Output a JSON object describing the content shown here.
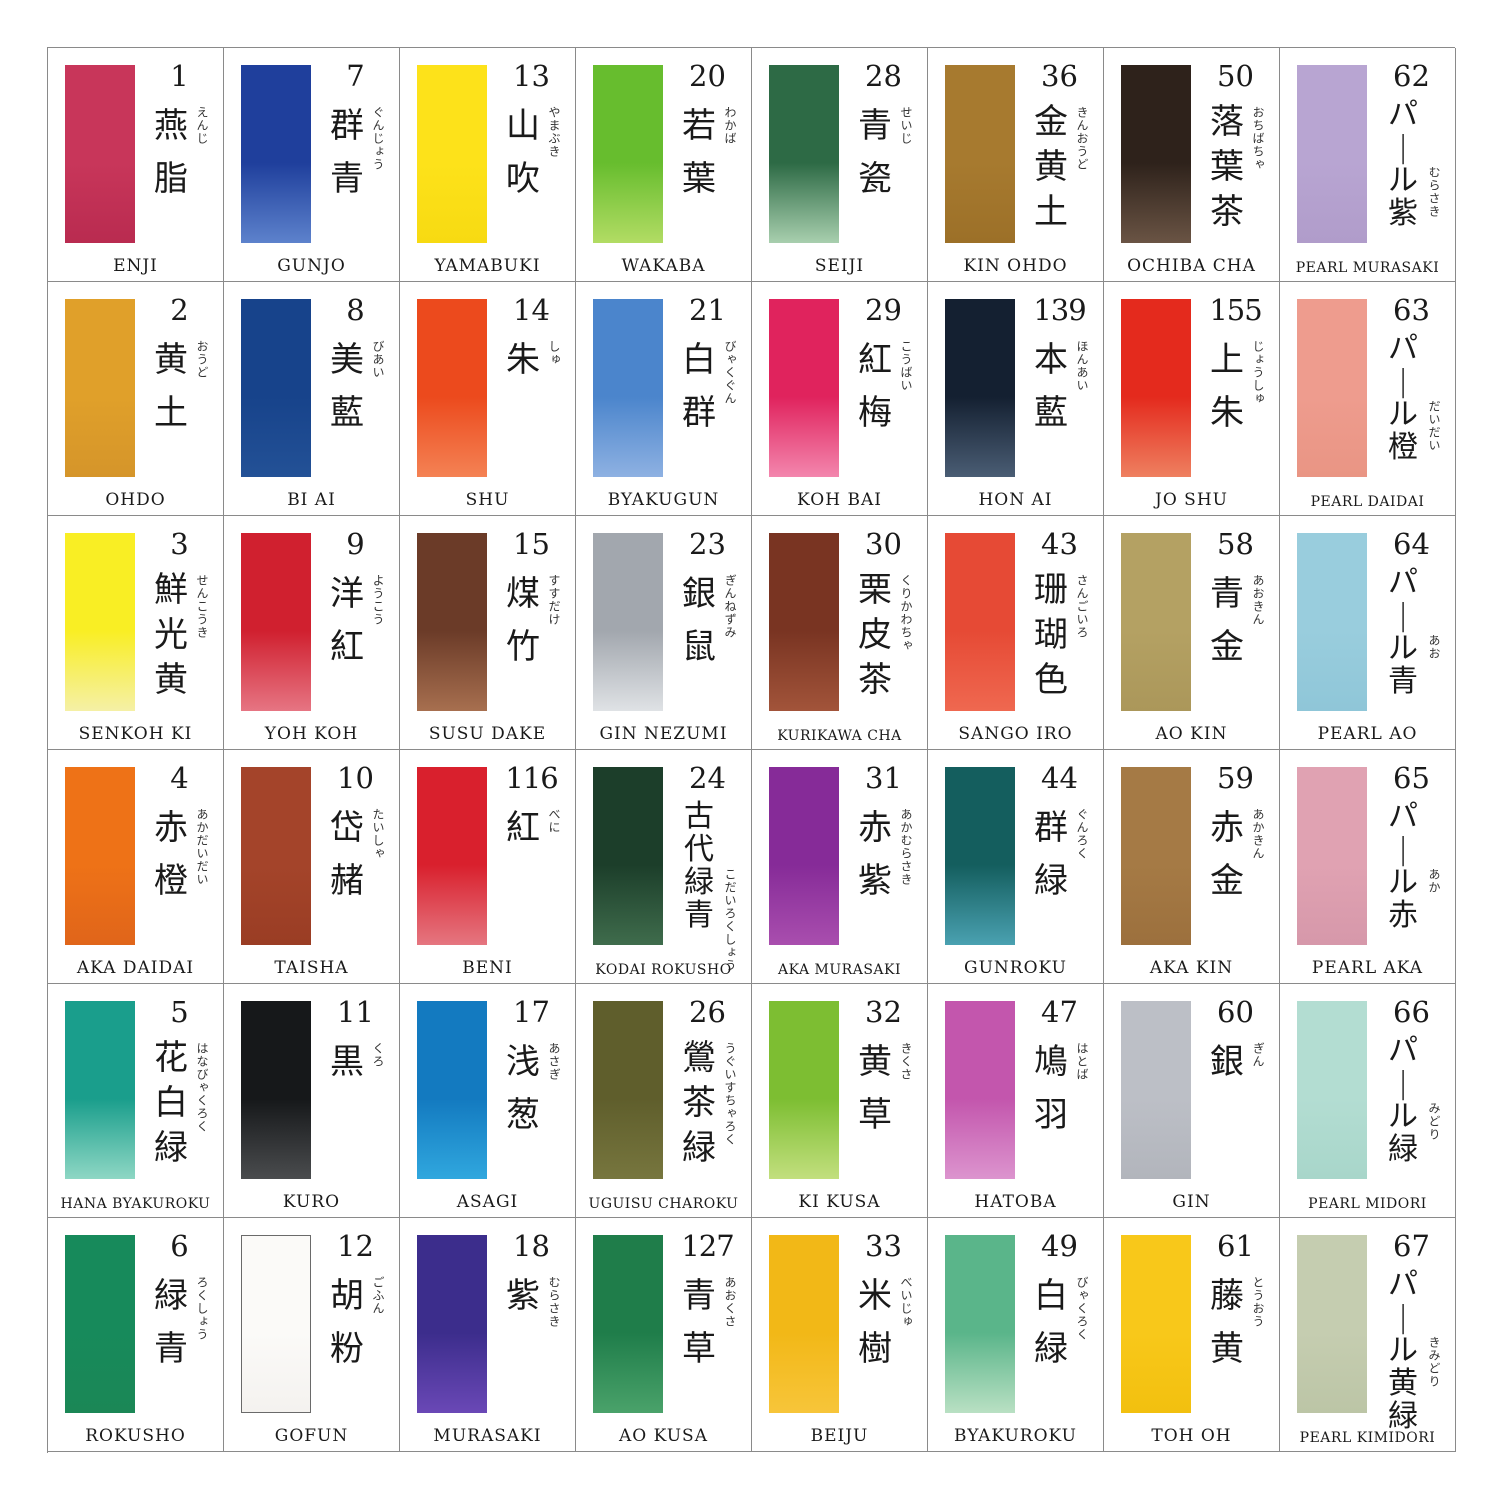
{
  "rows": [
    [
      {
        "number": "1",
        "kanji": "燕脂",
        "ruby": "えんじ",
        "romaji": "ENJI",
        "color": "#c8365a",
        "color2": "#b92b50"
      },
      {
        "number": "7",
        "kanji": "群青",
        "ruby": "ぐんじょう",
        "romaji": "GUNJO",
        "color": "#1f3f9c",
        "color2": "#5d82cc"
      },
      {
        "number": "13",
        "kanji": "山吹",
        "ruby": "やまぶき",
        "romaji": "YAMABUKI",
        "color": "#fde21a",
        "color2": "#f7da12"
      },
      {
        "number": "20",
        "kanji": "若葉",
        "ruby": "わかば",
        "romaji": "WAKABA",
        "color": "#67bd2e",
        "color2": "#b2dc64"
      },
      {
        "number": "28",
        "kanji": "青瓷",
        "ruby": "せいじ",
        "romaji": "SEIJI",
        "color": "#2d6a45",
        "color2": "#a8cfae"
      },
      {
        "number": "36",
        "kanji": "金黄土",
        "ruby": "きんおうど",
        "romaji": "KIN OHDO",
        "color": "#a77a2f",
        "color2": "#9c7028"
      },
      {
        "number": "50",
        "kanji": "落葉茶",
        "ruby": "おちばちゃ",
        "romaji": "OCHIBA CHA",
        "color": "#2e221b",
        "color2": "#6a5444"
      },
      {
        "number": "62",
        "kanji": "パール紫",
        "ruby": "むらさき",
        "romaji": "PEARL MURASAKI",
        "color": "#b8a5d2",
        "color2": "#b09cca"
      }
    ],
    [
      {
        "number": "2",
        "kanji": "黄土",
        "ruby": "おうど",
        "romaji": "OHDO",
        "color": "#e0a02a",
        "color2": "#d5952a"
      },
      {
        "number": "8",
        "kanji": "美藍",
        "ruby": "びあい",
        "romaji": "BI AI",
        "color": "#17438b",
        "color2": "#235196"
      },
      {
        "number": "14",
        "kanji": "朱",
        "ruby": "しゅ",
        "romaji": "SHU",
        "color": "#ec4a1d",
        "color2": "#f48254"
      },
      {
        "number": "21",
        "kanji": "白群",
        "ruby": "びゃくぐん",
        "romaji": "BYAKUGUN",
        "color": "#4b85cc",
        "color2": "#8eb1e2"
      },
      {
        "number": "29",
        "kanji": "紅梅",
        "ruby": "こうばい",
        "romaji": "KOH BAI",
        "color": "#e0235d",
        "color2": "#f386ad"
      },
      {
        "number": "139",
        "kanji": "本藍",
        "ruby": "ほんあい",
        "romaji": "HON AI",
        "color": "#142031",
        "color2": "#4a5d74"
      },
      {
        "number": "155",
        "kanji": "上朱",
        "ruby": "じょうしゅ",
        "romaji": "JO SHU",
        "color": "#e42a1d",
        "color2": "#ee8060"
      },
      {
        "number": "63",
        "kanji": "パール橙",
        "ruby": "だいだい",
        "romaji": "PEARL DAIDAI",
        "color": "#ee9c8e",
        "color2": "#e99584"
      }
    ],
    [
      {
        "number": "3",
        "kanji": "鮮光黄",
        "ruby": "せんこうき",
        "romaji": "SENKOH KI",
        "color": "#f9ee24",
        "color2": "#f5f0a6"
      },
      {
        "number": "9",
        "kanji": "洋紅",
        "ruby": "ようこう",
        "romaji": "YOH KOH",
        "color": "#d0202f",
        "color2": "#e67583"
      },
      {
        "number": "15",
        "kanji": "煤竹",
        "ruby": "すすだけ",
        "romaji": "SUSU DAKE",
        "color": "#6b3b28",
        "color2": "#a76f4f"
      },
      {
        "number": "23",
        "kanji": "銀鼠",
        "ruby": "ぎんねずみ",
        "romaji": "GIN NEZUMI",
        "color": "#a2a7ae",
        "color2": "#dfe2e5"
      },
      {
        "number": "30",
        "kanji": "栗皮茶",
        "ruby": "くりかわちゃ",
        "romaji": "KURIKAWA CHA",
        "color": "#793422",
        "color2": "#a2543a"
      },
      {
        "number": "43",
        "kanji": "珊瑚色",
        "ruby": "さんごいろ",
        "romaji": "SANGO IRO",
        "color": "#e64a35",
        "color2": "#ef6850"
      },
      {
        "number": "58",
        "kanji": "青金",
        "ruby": "あおきん",
        "romaji": "AO KIN",
        "color": "#b4a163",
        "color2": "#ab975a"
      },
      {
        "number": "64",
        "kanji": "パール青",
        "ruby": "あお",
        "romaji": "PEARL AO",
        "color": "#99cddd",
        "color2": "#8fc6d8"
      }
    ],
    [
      {
        "number": "4",
        "kanji": "赤橙",
        "ruby": "あかだいだい",
        "romaji": "AKA DAIDAI",
        "color": "#ee7217",
        "color2": "#e0651a"
      },
      {
        "number": "10",
        "kanji": "岱赭",
        "ruby": "たいしゃ",
        "romaji": "TAISHA",
        "color": "#a4442a",
        "color2": "#9a3d24"
      },
      {
        "number": "116",
        "kanji": "紅",
        "ruby": "べに",
        "romaji": "BENI",
        "color": "#d9202d",
        "color2": "#e57680"
      },
      {
        "number": "24",
        "kanji": "古代緑青",
        "ruby": "こだいろくしょう",
        "romaji": "KODAI ROKUSHO",
        "color": "#1c3e2a",
        "color2": "#3f6c4c"
      },
      {
        "number": "31",
        "kanji": "赤紫",
        "ruby": "あかむらさき",
        "romaji": "AKA MURASAKI",
        "color": "#862b98",
        "color2": "#a94eae"
      },
      {
        "number": "44",
        "kanji": "群緑",
        "ruby": "ぐんろく",
        "romaji": "GUNROKU",
        "color": "#145e5e",
        "color2": "#4aa1b1"
      },
      {
        "number": "59",
        "kanji": "赤金",
        "ruby": "あかきん",
        "romaji": "AKA KIN",
        "color": "#a57a45",
        "color2": "#9c703d"
      },
      {
        "number": "65",
        "kanji": "パール赤",
        "ruby": "あか",
        "romaji": "PEARL AKA",
        "color": "#e0a2b2",
        "color2": "#d698aa"
      }
    ],
    [
      {
        "number": "5",
        "kanji": "花白緑",
        "ruby": "はなびゃくろく",
        "romaji": "HANA BYAKUROKU",
        "color": "#1a9e8c",
        "color2": "#8ed7c4"
      },
      {
        "number": "11",
        "kanji": "黒",
        "ruby": "くろ",
        "romaji": "KURO",
        "color": "#16181a",
        "color2": "#4a4c4e"
      },
      {
        "number": "17",
        "kanji": "浅葱",
        "ruby": "あさぎ",
        "romaji": "ASAGI",
        "color": "#137ac0",
        "color2": "#30a7de"
      },
      {
        "number": "26",
        "kanji": "鶯茶緑",
        "ruby": "うぐいすちゃろく",
        "romaji": "UGUISU CHAROKU",
        "color": "#5f5e2c",
        "color2": "#77763e"
      },
      {
        "number": "32",
        "kanji": "黄草",
        "ruby": "きくさ",
        "romaji": "KI KUSA",
        "color": "#7dbe32",
        "color2": "#c2df7e"
      },
      {
        "number": "47",
        "kanji": "鳩羽",
        "ruby": "はとば",
        "romaji": "HATOBA",
        "color": "#c356ad",
        "color2": "#dc94ce"
      },
      {
        "number": "60",
        "kanji": "銀",
        "ruby": "ぎん",
        "romaji": "GIN",
        "color": "#bcbfc6",
        "color2": "#b2b5bc"
      },
      {
        "number": "66",
        "kanji": "パール緑",
        "ruby": "みどり",
        "romaji": "PEARL MIDORI",
        "color": "#b3ddd2",
        "color2": "#a8d6ca"
      }
    ],
    [
      {
        "number": "6",
        "kanji": "緑青",
        "ruby": "ろくしょう",
        "romaji": "ROKUSHO",
        "color": "#178a5b",
        "color2": "#1b8756"
      },
      {
        "number": "12",
        "kanji": "胡粉",
        "ruby": "ごふん",
        "romaji": "GOFUN",
        "color": "#fbfaf8",
        "color2": "#f4f2ef"
      },
      {
        "number": "18",
        "kanji": "紫",
        "ruby": "むらさき",
        "romaji": "MURASAKI",
        "color": "#3c2d8c",
        "color2": "#6a48b6"
      },
      {
        "number": "127",
        "kanji": "青草",
        "ruby": "あおくさ",
        "romaji": "AO KUSA",
        "color": "#1f7d4a",
        "color2": "#4aa26a"
      },
      {
        "number": "33",
        "kanji": "米樹",
        "ruby": "べいじゅ",
        "romaji": "BEIJU",
        "color": "#f2b817",
        "color2": "#f7c53a"
      },
      {
        "number": "49",
        "kanji": "白緑",
        "ruby": "びゃくろく",
        "romaji": "BYAKUROKU",
        "color": "#5ab58a",
        "color2": "#b9e0c3"
      },
      {
        "number": "61",
        "kanji": "藤黄",
        "ruby": "とうおう",
        "romaji": "TOH OH",
        "color": "#f8c81a",
        "color2": "#f2c00f"
      },
      {
        "number": "67",
        "kanji": "パール黄緑",
        "ruby": "きみどり",
        "romaji": "PEARL KIMIDORI",
        "color": "#c5cdb0",
        "color2": "#bcc5a6"
      }
    ]
  ]
}
